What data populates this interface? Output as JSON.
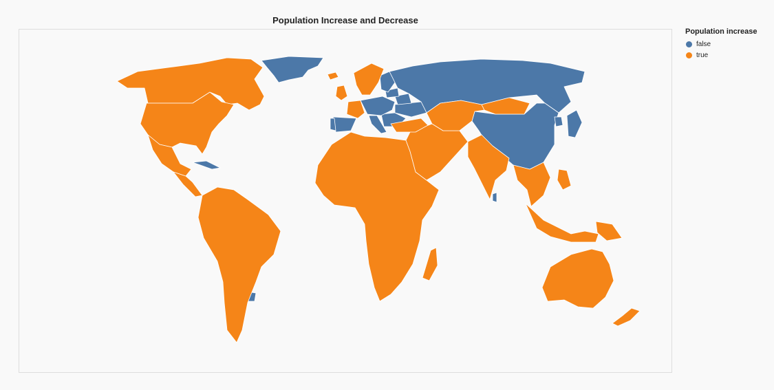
{
  "title": "Population Increase and Decrease",
  "legend": {
    "title": "Population increase",
    "items": [
      {
        "label": "false",
        "color": "#4c78a8"
      },
      {
        "label": "true",
        "color": "#f58518"
      }
    ]
  },
  "colors": {
    "false": "#4c78a8",
    "true": "#f58518"
  },
  "chart_data": {
    "type": "choropleth",
    "title": "Population Increase and Decrease",
    "legend_title": "Population increase",
    "legend_placement": "top-right",
    "categories": [
      "false",
      "true"
    ],
    "regions": [
      {
        "region": "Greenland",
        "value": "false"
      },
      {
        "region": "Russia",
        "value": "false"
      },
      {
        "region": "China",
        "value": "false"
      },
      {
        "region": "Japan",
        "value": "false"
      },
      {
        "region": "Eastern Europe",
        "value": "false"
      },
      {
        "region": "Central Europe",
        "value": "false"
      },
      {
        "region": "Spain",
        "value": "false"
      },
      {
        "region": "Portugal",
        "value": "false"
      },
      {
        "region": "Italy",
        "value": "false"
      },
      {
        "region": "Ukraine",
        "value": "false"
      },
      {
        "region": "Belarus",
        "value": "false"
      },
      {
        "region": "Baltic states",
        "value": "false"
      },
      {
        "region": "Finland",
        "value": "false"
      },
      {
        "region": "Cuba",
        "value": "false"
      },
      {
        "region": "Guyana",
        "value": "false"
      },
      {
        "region": "Uruguay",
        "value": "false"
      },
      {
        "region": "Thailand",
        "value": "false"
      },
      {
        "region": "Sri Lanka",
        "value": "false"
      },
      {
        "region": "North Korea",
        "value": "false"
      },
      {
        "region": "Canada",
        "value": "true"
      },
      {
        "region": "United States",
        "value": "true"
      },
      {
        "region": "Mexico",
        "value": "true"
      },
      {
        "region": "Central America",
        "value": "true"
      },
      {
        "region": "South America",
        "value": "true"
      },
      {
        "region": "United Kingdom",
        "value": "true"
      },
      {
        "region": "France",
        "value": "true"
      },
      {
        "region": "Scandinavia",
        "value": "true"
      },
      {
        "region": "Iceland",
        "value": "true"
      },
      {
        "region": "Africa",
        "value": "true"
      },
      {
        "region": "Madagascar",
        "value": "true"
      },
      {
        "region": "Middle East",
        "value": "true"
      },
      {
        "region": "Turkey",
        "value": "true"
      },
      {
        "region": "Central Asia",
        "value": "true"
      },
      {
        "region": "Mongolia",
        "value": "true"
      },
      {
        "region": "India",
        "value": "true"
      },
      {
        "region": "Southeast Asia",
        "value": "true"
      },
      {
        "region": "Indonesia",
        "value": "true"
      },
      {
        "region": "Philippines",
        "value": "true"
      },
      {
        "region": "Papua New Guinea",
        "value": "true"
      },
      {
        "region": "Australia",
        "value": "true"
      },
      {
        "region": "New Zealand",
        "value": "true"
      }
    ]
  }
}
